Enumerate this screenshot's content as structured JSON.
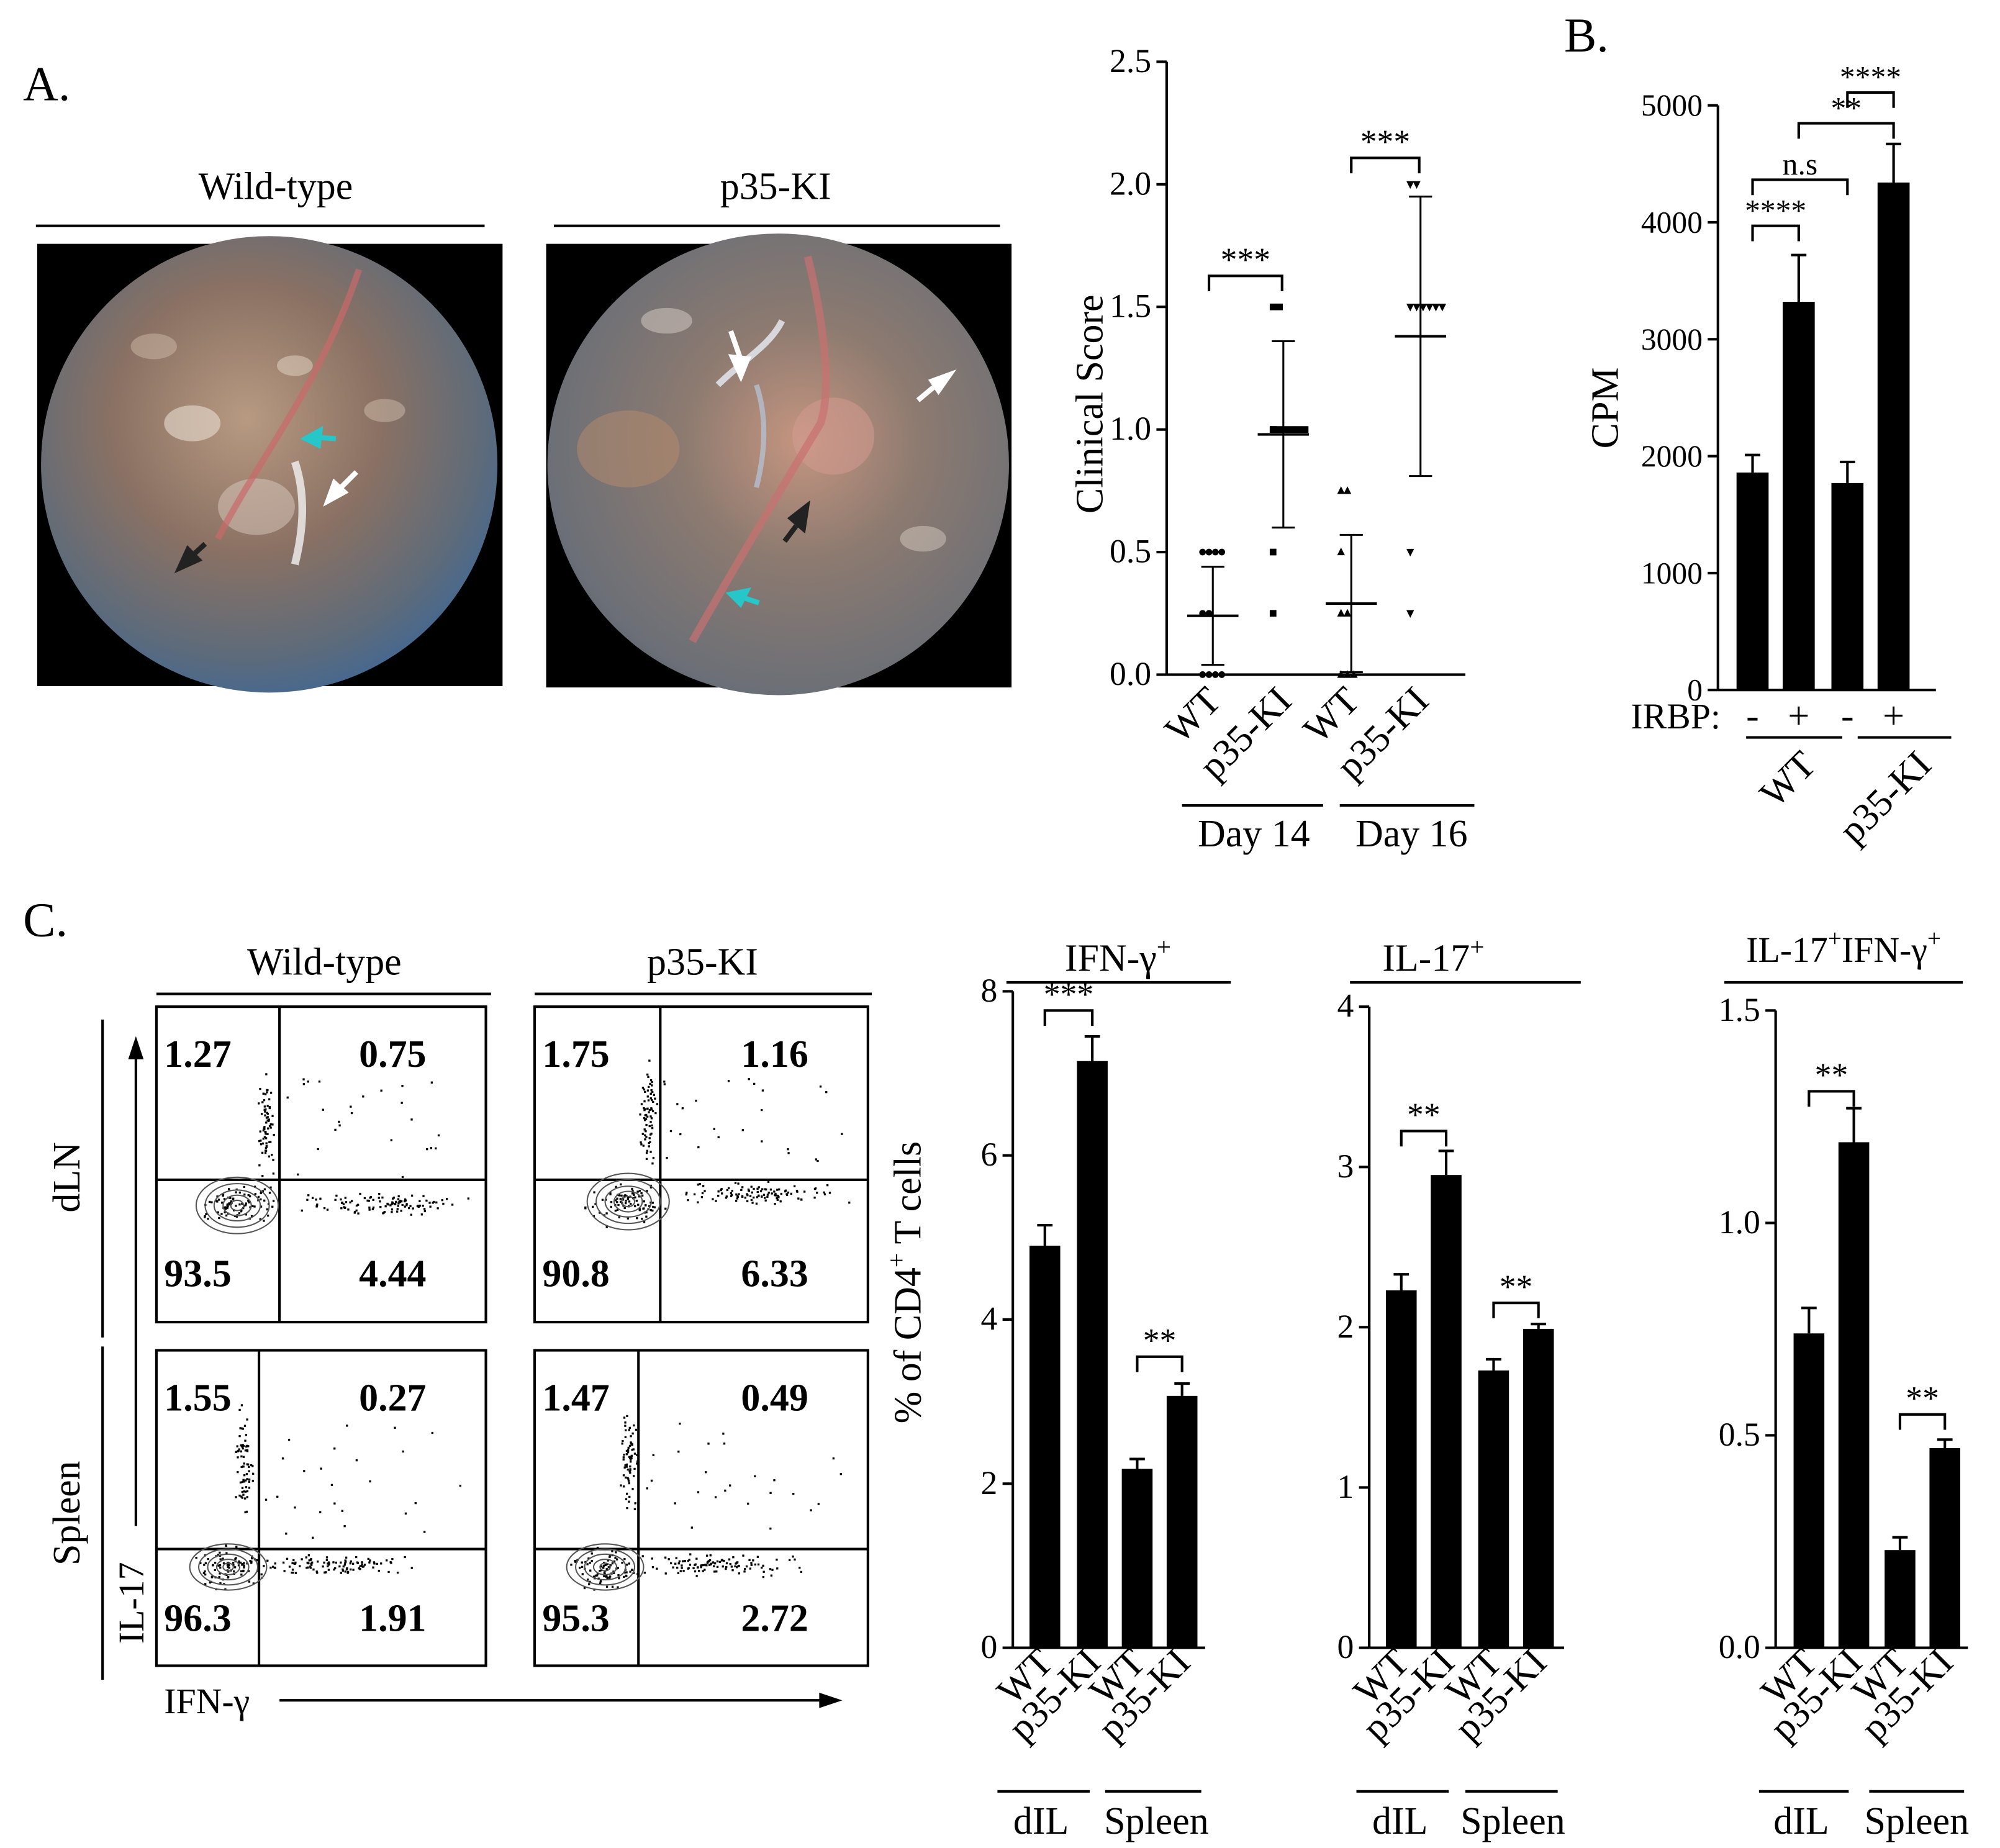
{
  "panel_labels": {
    "a": "A.",
    "b": "B.",
    "c": "C."
  },
  "fundus": {
    "wt_title": "Wild-type",
    "ki_title": "p35-KI",
    "arrow_colors": {
      "black": "#222222",
      "white": "#ffffff",
      "cyan": "#27c6c9"
    }
  },
  "flow": {
    "col_titles": [
      "Wild-type",
      "p35-KI"
    ],
    "row_labels": [
      "dLN",
      "Spleen"
    ],
    "y_axis_label": "IL-17",
    "x_axis_label": "IFN-γ",
    "plots": [
      {
        "q": [
          "1.27",
          "0.75",
          "93.5",
          "4.44"
        ]
      },
      {
        "q": [
          "1.75",
          "1.16",
          "90.8",
          "6.33"
        ]
      },
      {
        "q": [
          "1.55",
          "0.27",
          "96.3",
          "1.91"
        ]
      },
      {
        "q": [
          "1.47",
          "0.49",
          "95.3",
          "2.72"
        ]
      }
    ]
  },
  "chart_data": [
    {
      "id": "clinical",
      "type": "scatter",
      "ylabel": "Clinical Score",
      "ylim": [
        0,
        2.5
      ],
      "yticks": [
        "0.0",
        "0.5",
        "1.0",
        "1.5",
        "2.0",
        "2.5"
      ],
      "categories": [
        "WT",
        "p35-KI",
        "WT",
        "p35-KI"
      ],
      "groups": [
        "Day 14",
        "Day 16"
      ],
      "series": [
        {
          "name": "WT Day 14",
          "mean": 0.24,
          "sd": 0.2,
          "points": [
            0,
            0,
            0,
            0,
            0.25,
            0.25,
            0.5,
            0.5,
            0.5,
            0.5
          ]
        },
        {
          "name": "p35-KI Day 14",
          "mean": 0.98,
          "sd": 0.38,
          "points": [
            0.25,
            0.5,
            1,
            1,
            1,
            1,
            1,
            1,
            1,
            1.5,
            1.5
          ]
        },
        {
          "name": "WT Day 16",
          "mean": 0.29,
          "sd": 0.28,
          "points": [
            0,
            0,
            0,
            0.25,
            0.25,
            0.5,
            0.75,
            0.75
          ]
        },
        {
          "name": "p35-KI Day 16",
          "mean": 1.38,
          "sd": 0.57,
          "points": [
            0.25,
            0.5,
            1.5,
            1.5,
            1.5,
            1.5,
            1.5,
            1.5,
            2,
            2
          ]
        }
      ],
      "significance": [
        {
          "label": "***",
          "between": [
            0,
            1
          ]
        },
        {
          "label": "***",
          "between": [
            2,
            3
          ]
        }
      ]
    },
    {
      "id": "cpm",
      "type": "bar",
      "ylabel": "CPM",
      "ylim": [
        0,
        5000
      ],
      "yticks": [
        "0",
        "1000",
        "2000",
        "3000",
        "4000",
        "5000"
      ],
      "row_label": "IRBP:",
      "categories": [
        "-",
        "+",
        "-",
        "+"
      ],
      "groups": [
        "WT",
        "p35-KI"
      ],
      "values": [
        1860,
        3320,
        1770,
        4340
      ],
      "errors": [
        150,
        400,
        180,
        330
      ],
      "significance": [
        {
          "label": "****",
          "between": [
            0,
            1
          ]
        },
        {
          "label": "n.s",
          "between": [
            0,
            2
          ]
        },
        {
          "label": "**",
          "between": [
            1,
            3
          ]
        },
        {
          "label": "****",
          "between": [
            2,
            3
          ]
        }
      ]
    },
    {
      "id": "ifng",
      "type": "bar",
      "title": "IFN-γ",
      "title_sup": "+",
      "ylabel_main": "% of CD4",
      "ylabel_sup": "+",
      "ylabel_tail": " T cells",
      "ylim": [
        0,
        8
      ],
      "yticks": [
        "0",
        "2",
        "4",
        "6",
        "8"
      ],
      "categories": [
        "WT",
        "p35-KI",
        "WT",
        "p35-KI"
      ],
      "groups": [
        "dIL",
        "Spleen"
      ],
      "values": [
        4.9,
        7.15,
        2.18,
        3.07
      ],
      "errors": [
        0.25,
        0.3,
        0.12,
        0.15
      ],
      "significance": [
        {
          "label": "***",
          "between": [
            0,
            1
          ]
        },
        {
          "label": "**",
          "between": [
            2,
            3
          ]
        }
      ]
    },
    {
      "id": "il17",
      "type": "bar",
      "title": "IL-17",
      "title_sup": "+",
      "ylim": [
        0,
        4
      ],
      "yticks": [
        "0",
        "1",
        "2",
        "3",
        "4"
      ],
      "categories": [
        "WT",
        "p35-KI",
        "WT",
        "p35-KI"
      ],
      "groups": [
        "dIL",
        "Spleen"
      ],
      "values": [
        2.23,
        2.95,
        1.73,
        1.99
      ],
      "errors": [
        0.1,
        0.15,
        0.07,
        0.03
      ],
      "significance": [
        {
          "label": "**",
          "between": [
            0,
            1
          ]
        },
        {
          "label": "**",
          "between": [
            2,
            3
          ]
        }
      ]
    },
    {
      "id": "dual",
      "type": "bar",
      "title": "IL-17",
      "title_sup": "+",
      "title_mid": "IFN-γ",
      "title_sup2": "+",
      "ylim": [
        0,
        1.5
      ],
      "yticks": [
        "0.0",
        "0.5",
        "1.0",
        "1.5"
      ],
      "categories": [
        "WT",
        "p35-KI",
        "WT",
        "p35-KI"
      ],
      "groups": [
        "dIL",
        "Spleen"
      ],
      "values": [
        0.74,
        1.19,
        0.23,
        0.47
      ],
      "errors": [
        0.06,
        0.08,
        0.03,
        0.02
      ],
      "significance": [
        {
          "label": "**",
          "between": [
            0,
            1
          ]
        },
        {
          "label": "**",
          "between": [
            2,
            3
          ]
        }
      ]
    }
  ]
}
